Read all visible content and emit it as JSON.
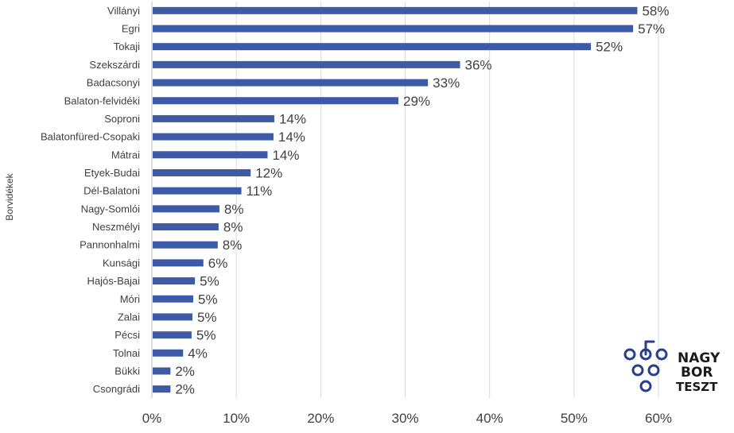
{
  "chart_data": {
    "type": "bar",
    "orientation": "horizontal",
    "title": "",
    "xlabel": "",
    "ylabel": "Borvidékek",
    "xlim": [
      0,
      60
    ],
    "x_ticks": [
      "0%",
      "10%",
      "20%",
      "30%",
      "40%",
      "50%",
      "60%"
    ],
    "grid": "vertical",
    "bar_color": "#3c5aa6",
    "categories": [
      "Villányi",
      "Egri",
      "Tokaji",
      "Szekszárdi",
      "Badacsonyi",
      "Balaton-felvidéki",
      "Soproni",
      "Balatonfüred-Csopaki",
      "Mátrai",
      "Etyek-Budai",
      "Dél-Balatoni",
      "Nagy-Somlói",
      "Neszmélyi",
      "Pannonhalmi",
      "Kunsági",
      "Hajós-Bajai",
      "Móri",
      "Zalai",
      "Pécsi",
      "Tolnai",
      "Bükki",
      "Csongrádi"
    ],
    "values": [
      57.5,
      57,
      52,
      36.5,
      32.7,
      29.2,
      14.5,
      14.4,
      13.7,
      11.7,
      10.6,
      8,
      7.9,
      7.8,
      6.1,
      5.1,
      4.9,
      4.8,
      4.7,
      3.7,
      2.2,
      2.2
    ],
    "data_labels": [
      "58%",
      "57%",
      "52%",
      "36%",
      "33%",
      "29%",
      "14%",
      "14%",
      "14%",
      "12%",
      "11%",
      "8%",
      "8%",
      "8%",
      "6%",
      "5%",
      "5%",
      "5%",
      "5%",
      "4%",
      "2%",
      "2%"
    ]
  },
  "logo": {
    "lines": [
      "NAGY",
      "BOR",
      "TESZT"
    ],
    "color": "#2b3f8f"
  }
}
